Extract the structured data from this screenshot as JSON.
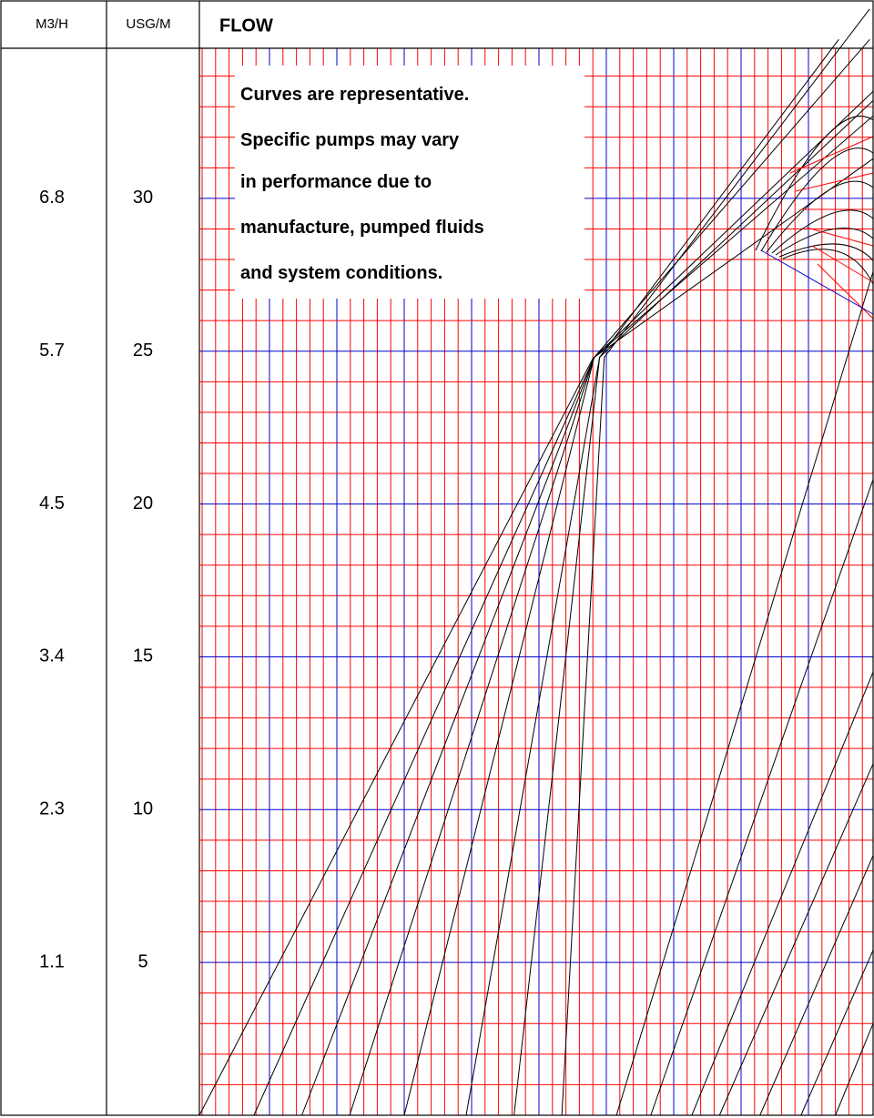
{
  "headers": {
    "m3h": "M3/H",
    "usgm": "USG/M",
    "flow": "FLOW"
  },
  "note_lines": [
    "Curves are representative.",
    "Specific pumps may vary",
    "in performance due to",
    "manufacture, pumped fluids",
    "and system conditions."
  ],
  "colors": {
    "minor_grid": "#ff0000",
    "major_grid": "#0000cc",
    "curves": "#000000",
    "frame": "#000000"
  },
  "chart_data": {
    "type": "line",
    "title": "FLOW",
    "ylabel": "USG/M",
    "ylabel_secondary": "M3/H",
    "ylim": [
      0,
      35
    ],
    "yticks_usgm": [
      "30",
      "25",
      "20",
      "15",
      "10",
      "5"
    ],
    "yticks_m3h": [
      "6.8",
      "5.7",
      "4.5",
      "3.4",
      "2.3",
      "1.1"
    ],
    "grid": true,
    "xlim": [
      0,
      100
    ],
    "series": [
      {
        "x": [
          0,
          58.5
        ],
        "y": [
          0,
          24.8
        ]
      },
      {
        "x": [
          8.1,
          58.6,
          100
        ],
        "y": [
          0,
          24.8,
          32.7
        ]
      },
      {
        "x": [
          15.2,
          58.6,
          99.5
        ],
        "y": [
          0,
          24.8,
          35.2
        ]
      },
      {
        "x": [
          22.3,
          58.6,
          100
        ],
        "y": [
          0,
          24.8,
          33.5
        ]
      },
      {
        "x": [
          30.4,
          58.6,
          100
        ],
        "y": [
          0,
          24.8,
          31.3
        ]
      },
      {
        "x": [
          39.6,
          59.4,
          94.9
        ],
        "y": [
          0,
          24.8,
          35.2
        ]
      },
      {
        "x": [
          46.7,
          59.4,
          100
        ],
        "y": [
          0,
          24.8,
          33.2
        ]
      },
      {
        "x": [
          53.8,
          60.1,
          99.5
        ],
        "y": [
          0,
          24.8,
          36.2
        ]
      },
      {
        "x": [
          61.9,
          100
        ],
        "y": [
          0,
          27.6
        ]
      },
      {
        "x": [
          67.0,
          100
        ],
        "y": [
          0,
          20.8
        ]
      },
      {
        "x": [
          73.1,
          100
        ],
        "y": [
          0,
          14.5
        ]
      },
      {
        "x": [
          77.2,
          100
        ],
        "y": [
          0,
          11.5
        ]
      },
      {
        "x": [
          83.2,
          100
        ],
        "y": [
          0,
          8.5
        ]
      },
      {
        "x": [
          89.3,
          100
        ],
        "y": [
          0,
          5.4
        ]
      },
      {
        "x": [
          94.4,
          100
        ],
        "y": [
          0,
          3.0
        ]
      }
    ]
  }
}
